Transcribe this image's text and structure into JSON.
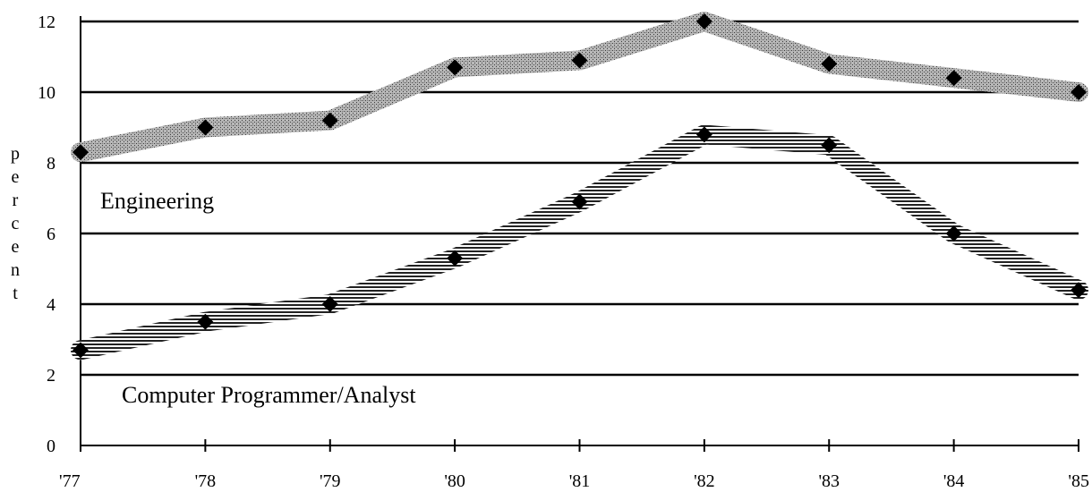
{
  "chart_data": {
    "type": "line",
    "title": "",
    "xlabel": "",
    "ylabel": "percent",
    "ylim": [
      0,
      12
    ],
    "yticks": [
      "0",
      "2",
      "4",
      "6",
      "8",
      "10",
      "12"
    ],
    "categories": [
      "'77",
      "'78",
      "'79",
      "'80",
      "'81",
      "'82",
      "'83",
      "'84",
      "'85"
    ],
    "grid": "horizontal",
    "series": [
      {
        "name": "Engineering",
        "values": [
          8.3,
          9.0,
          9.2,
          10.7,
          10.9,
          12.0,
          10.8,
          10.4,
          10.0
        ]
      },
      {
        "name": "Computer Programmer/Analyst",
        "values": [
          2.7,
          3.5,
          4.0,
          5.3,
          6.9,
          8.8,
          8.5,
          6.0,
          4.4
        ]
      }
    ]
  }
}
